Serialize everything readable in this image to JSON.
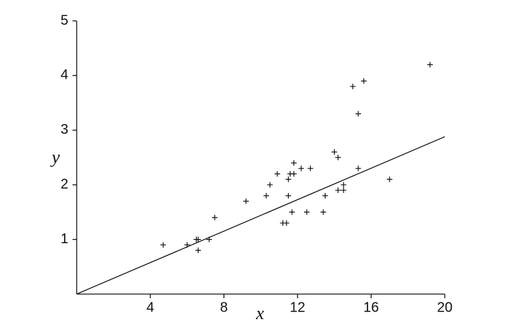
{
  "chart_data": {
    "type": "scatter",
    "x_label": "x",
    "y_label": "y",
    "xlim": [
      0,
      20
    ],
    "ylim": [
      0,
      5
    ],
    "xticks": [
      4,
      8,
      12,
      16,
      20
    ],
    "yticks": [
      1,
      2,
      3,
      4,
      5
    ],
    "color": "#111111",
    "x": [
      4.7,
      6.0,
      6.5,
      6.6,
      6.6,
      7.2,
      7.5,
      9.2,
      10.3,
      10.5,
      10.9,
      11.2,
      11.4,
      11.5,
      11.5,
      11.6,
      11.7,
      11.8,
      11.8,
      12.2,
      12.5,
      12.7,
      13.4,
      13.5,
      14.0,
      14.2,
      14.2,
      14.5,
      14.5,
      15.0,
      15.3,
      15.3,
      15.6,
      17.0,
      19.2
    ],
    "y": [
      0.9,
      0.9,
      1.0,
      1.0,
      0.8,
      1.0,
      1.4,
      1.7,
      1.8,
      2.0,
      2.2,
      1.3,
      1.3,
      1.8,
      2.1,
      2.2,
      1.5,
      2.2,
      2.4,
      2.3,
      1.5,
      2.3,
      1.5,
      1.8,
      2.6,
      2.5,
      1.9,
      1.9,
      2.0,
      3.8,
      3.3,
      2.3,
      3.9,
      2.1,
      4.2
    ],
    "fit_line": {
      "x": [
        0,
        20
      ],
      "y": [
        0,
        2.88
      ]
    }
  }
}
